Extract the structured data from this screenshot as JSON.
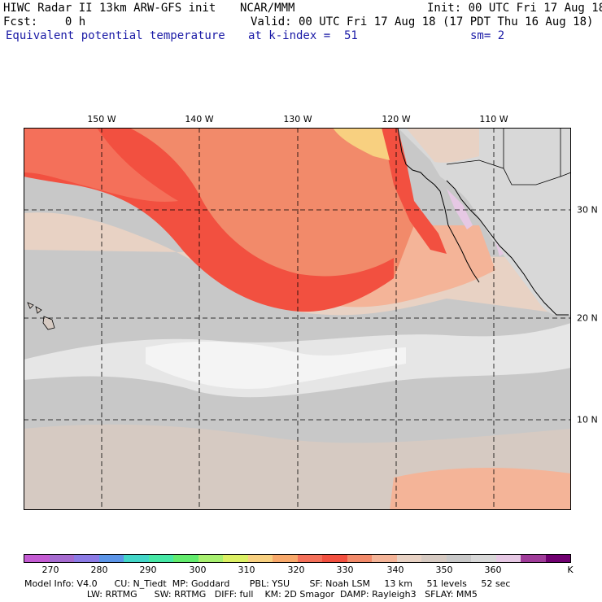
{
  "header": {
    "title_left": "HIWC Radar II 13km ARW-GFS init",
    "org": "NCAR/MMM",
    "init": "Init: 00 UTC Fri 17 Aug 18",
    "fcst": "Fcst:    0 h",
    "valid": "Valid: 00 UTC Fri 17 Aug 18 (17 PDT Thu 16 Aug 18)",
    "field": "Equivalent potential temperature",
    "level": "at k-index =  51",
    "smooth": "sm= 2"
  },
  "map": {
    "lon_labels": [
      "150 W",
      "140 W",
      "130 W",
      "120 W",
      "110 W"
    ],
    "lat_labels": [
      "30 N",
      "20 N",
      "10 N"
    ]
  },
  "colorbar": {
    "colors": [
      "#c45bd3",
      "#a66bd0",
      "#8c7be6",
      "#5c95e8",
      "#43d6c8",
      "#47e8a6",
      "#63ec6e",
      "#a8f070",
      "#dcf064",
      "#f8d080",
      "#f8a86a",
      "#f4705a",
      "#f25040",
      "#f28a6a",
      "#f4b498",
      "#e8d2c4",
      "#d6cac2",
      "#c8c8c8",
      "#d8d8d8",
      "#e6c8e4",
      "#a03c9a",
      "#700070"
    ],
    "labels": [
      "270",
      "280",
      "290",
      "300",
      "310",
      "320",
      "330",
      "340",
      "350",
      "360",
      "K"
    ]
  },
  "footer": {
    "line1": "Model Info: V4.0      CU: N_Tiedt  MP: Goddard       PBL: YSU       SF: Noah LSM     13 km     51 levels     52 sec",
    "line2": "                      LW: RRTMG      SW: RRTMG   DIFF: full    KM: 2D Smagor  DAMP: Rayleigh3   SFLAY: MM5"
  }
}
